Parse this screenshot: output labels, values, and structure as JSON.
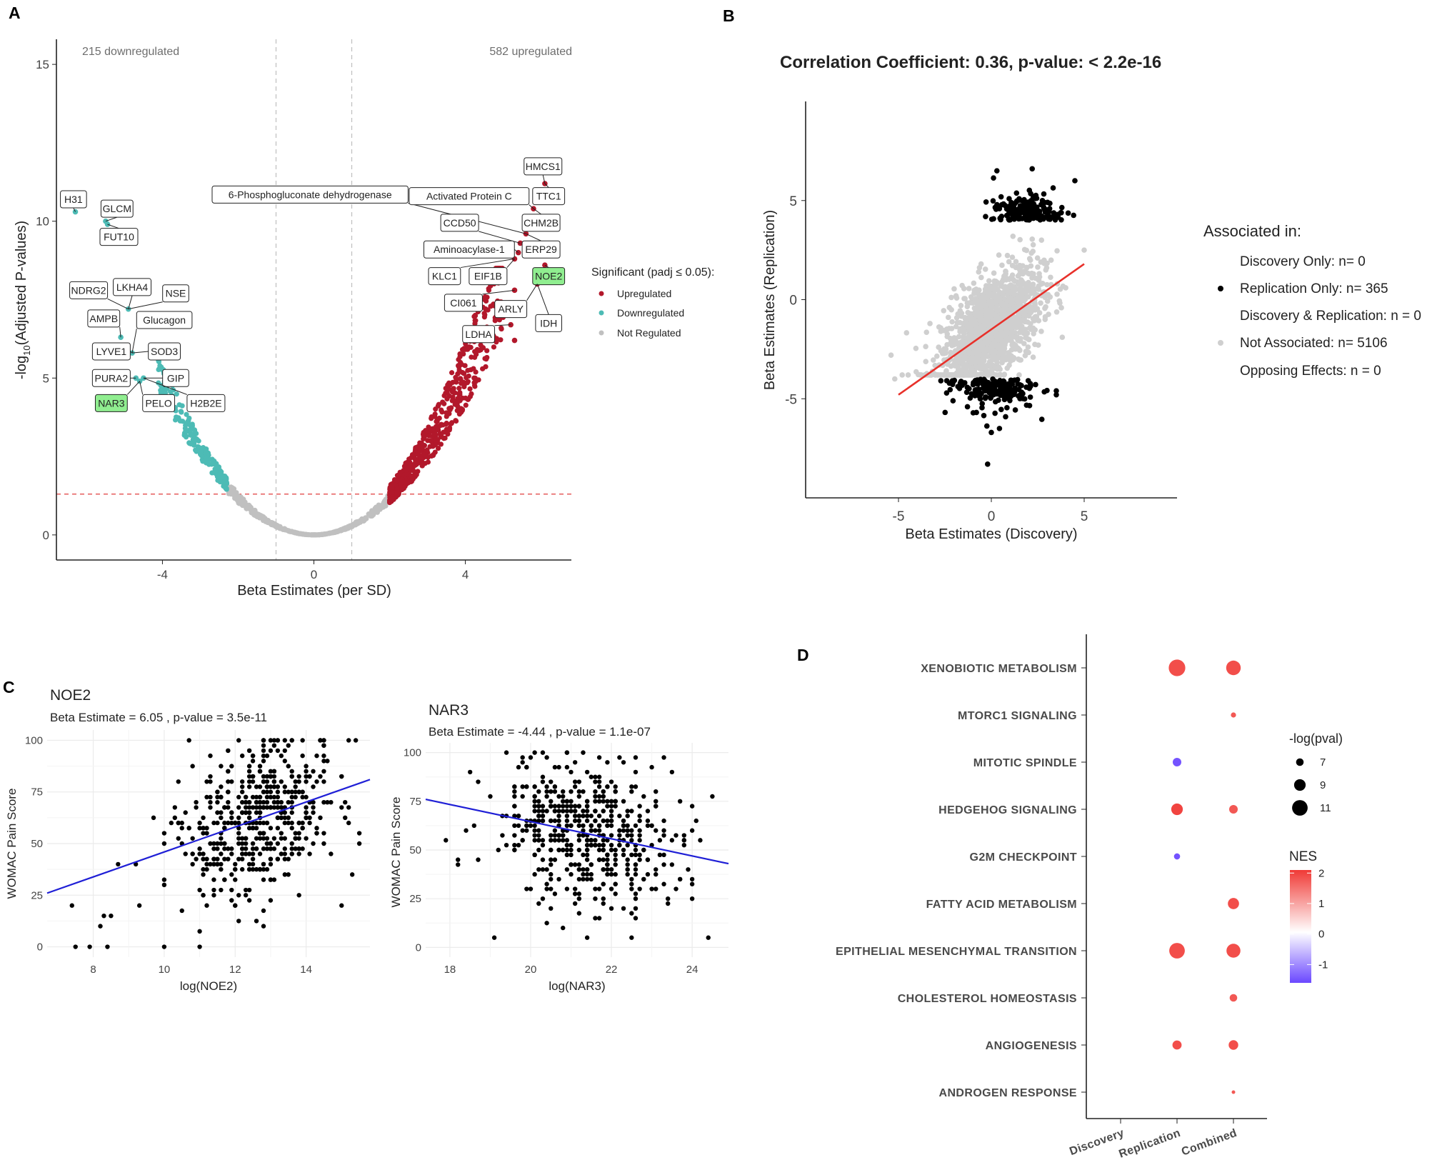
{
  "figure": {
    "panel_labels": [
      "A",
      "B",
      "C",
      "D"
    ]
  },
  "chart_data": [
    {
      "id": "A",
      "type": "scatter",
      "subtype": "volcano",
      "xlabel": "Beta Estimates (per SD)",
      "ylabel_main": "-log",
      "ylabel_sub": "10",
      "ylabel_rest": "(Adjusted P-values)",
      "xlim": [
        -6.8,
        6.8
      ],
      "ylim": [
        -0.8,
        15.8
      ],
      "xticks": [
        -4,
        0,
        4
      ],
      "yticks": [
        0,
        5,
        10,
        15
      ],
      "xtick_labels": [
        "-4",
        "0",
        "4"
      ],
      "ytick_labels": [
        "0",
        "5",
        "10",
        "15"
      ],
      "corner_labels": {
        "left": "215 downregulated",
        "right": "582 upregulated"
      },
      "vlines": [
        -1,
        1
      ],
      "hline": 1.3,
      "legend": {
        "title": "Significant (padj ≤ 0.05):",
        "entries": [
          {
            "label": "Upregulated",
            "color": "#b2182b"
          },
          {
            "label": "Downregulated",
            "color": "#4dbbb5"
          },
          {
            "label": "Not Regulated",
            "color": "#c0c0c0"
          }
        ]
      },
      "series": [
        {
          "name": "Upregulated",
          "n": 582,
          "color": "#b2182b",
          "x_range": [
            2.0,
            5.8
          ]
        },
        {
          "name": "Downregulated",
          "n": 215,
          "color": "#4dbbb5",
          "x_range": [
            -6.2,
            -2.3
          ]
        },
        {
          "name": "Not Regulated",
          "color": "#c0c0c0",
          "x_range": [
            -2.3,
            2.0
          ]
        }
      ],
      "named_points": [
        {
          "x": -6.3,
          "y": 10.3,
          "color": "#4dbbb5"
        },
        {
          "x": -5.5,
          "y": 10.0,
          "color": "#4dbbb5"
        },
        {
          "x": -5.45,
          "y": 9.9,
          "color": "#4dbbb5"
        },
        {
          "x": -4.9,
          "y": 7.2,
          "color": "#4dbbb5"
        },
        {
          "x": -5.1,
          "y": 6.3,
          "color": "#4dbbb5"
        },
        {
          "x": -4.8,
          "y": 5.8,
          "color": "#4dbbb5"
        },
        {
          "x": -4.7,
          "y": 5.0,
          "color": "#4dbbb5"
        },
        {
          "x": -4.5,
          "y": 5.0,
          "color": "#4dbbb5"
        },
        {
          "x": -4.6,
          "y": 4.9,
          "color": "#4dbbb5"
        },
        {
          "x": 6.1,
          "y": 11.2,
          "color": "#b2182b"
        },
        {
          "x": 5.8,
          "y": 10.4,
          "color": "#b2182b"
        },
        {
          "x": 5.6,
          "y": 9.6,
          "color": "#b2182b"
        },
        {
          "x": 5.45,
          "y": 9.3,
          "color": "#b2182b"
        },
        {
          "x": 5.4,
          "y": 9.0,
          "color": "#b2182b"
        },
        {
          "x": 5.3,
          "y": 8.8,
          "color": "#b2182b"
        },
        {
          "x": 6.1,
          "y": 8.6,
          "color": "#b2182b"
        },
        {
          "x": 5.9,
          "y": 8.0,
          "color": "#b2182b"
        },
        {
          "x": 5.3,
          "y": 7.8,
          "color": "#b2182b"
        },
        {
          "x": 5.2,
          "y": 6.7,
          "color": "#b2182b"
        },
        {
          "x": 5.3,
          "y": 6.2,
          "color": "#b2182b"
        }
      ],
      "gene_labels": [
        {
          "text": "H31",
          "x": -6.35,
          "y": 10.7,
          "px": -6.3,
          "py": 10.3
        },
        {
          "text": "GLCM",
          "x": -5.2,
          "y": 10.4,
          "px": -5.5,
          "py": 10.0
        },
        {
          "text": "FUT10",
          "x": -5.15,
          "y": 9.5,
          "px": -5.45,
          "py": 9.9
        },
        {
          "text": "NDRG2",
          "x": -5.95,
          "y": 7.8,
          "px": -4.9,
          "py": 7.2
        },
        {
          "text": "LKHA4",
          "x": -4.8,
          "y": 7.9,
          "px": -4.9,
          "py": 7.2
        },
        {
          "text": "NSE",
          "x": -3.65,
          "y": 7.7,
          "px": -4.9,
          "py": 7.2
        },
        {
          "text": "AMPB",
          "x": -5.55,
          "y": 6.9,
          "px": -5.1,
          "py": 6.3
        },
        {
          "text": "Glucagon",
          "x": -3.95,
          "y": 6.85,
          "px": -4.8,
          "py": 5.8
        },
        {
          "text": "LYVE1",
          "x": -5.35,
          "y": 5.85,
          "px": -4.8,
          "py": 5.8
        },
        {
          "text": "SOD3",
          "x": -3.95,
          "y": 5.85,
          "px": -4.8,
          "py": 5.8
        },
        {
          "text": "PURA2",
          "x": -5.35,
          "y": 5.0,
          "px": -4.7,
          "py": 5.0
        },
        {
          "text": "GIP",
          "x": -3.65,
          "y": 5.0,
          "px": -4.5,
          "py": 5.0
        },
        {
          "text": "NAR3",
          "x": -5.35,
          "y": 4.2,
          "px": -4.6,
          "py": 4.9,
          "highlight": true
        },
        {
          "text": "PELO",
          "x": -4.1,
          "y": 4.2,
          "px": -4.6,
          "py": 4.9
        },
        {
          "text": "H2B2E",
          "x": -2.85,
          "y": 4.2,
          "px": -4.5,
          "py": 5.0
        },
        {
          "text": "HMCS1",
          "x": 6.05,
          "y": 11.75,
          "px": 6.1,
          "py": 11.2
        },
        {
          "text": "6-Phosphogluconate dehydrogenase",
          "x": -0.1,
          "y": 10.85,
          "px": 5.6,
          "py": 9.6
        },
        {
          "text": "Activated Protein C",
          "x": 4.1,
          "y": 10.8,
          "px": 5.8,
          "py": 10.4
        },
        {
          "text": "TTC1",
          "x": 6.2,
          "y": 10.8,
          "px": 6.1,
          "py": 11.2
        },
        {
          "text": "CCD50",
          "x": 3.85,
          "y": 9.95,
          "px": 5.45,
          "py": 9.3
        },
        {
          "text": "CHM2B",
          "x": 6.0,
          "y": 9.95,
          "px": 5.8,
          "py": 10.4
        },
        {
          "text": "Aminoacylase-1",
          "x": 4.1,
          "y": 9.1,
          "px": 5.4,
          "py": 9.0
        },
        {
          "text": "ERP29",
          "x": 6.0,
          "y": 9.1,
          "px": 5.6,
          "py": 9.6
        },
        {
          "text": "KLC1",
          "x": 3.45,
          "y": 8.25,
          "px": 5.3,
          "py": 8.8
        },
        {
          "text": "EIF1B",
          "x": 4.6,
          "y": 8.25,
          "px": 5.3,
          "py": 8.8
        },
        {
          "text": "NOE2",
          "x": 6.2,
          "y": 8.25,
          "px": 6.1,
          "py": 8.6,
          "highlight": true
        },
        {
          "text": "CI061",
          "x": 3.95,
          "y": 7.4,
          "px": 5.3,
          "py": 7.8
        },
        {
          "text": "ARLY",
          "x": 5.2,
          "y": 7.2,
          "px": 5.9,
          "py": 8.0
        },
        {
          "text": "IDH",
          "x": 6.2,
          "y": 6.75,
          "px": 5.9,
          "py": 8.0
        },
        {
          "text": "LDHA",
          "x": 4.35,
          "y": 6.4,
          "px": 5.2,
          "py": 6.7
        }
      ]
    },
    {
      "id": "B",
      "type": "scatter",
      "title": "Correlation Coefficient: 0.36, p-value: < 2.2e-16",
      "xlabel": "Beta Estimates (Discovery)",
      "ylabel": "Beta Estimates (Replication)",
      "xlim": [
        -10,
        10
      ],
      "ylim": [
        -10,
        10
      ],
      "xticks": [
        -5,
        0,
        5
      ],
      "yticks": [
        -5,
        0,
        5
      ],
      "xtick_labels": [
        "-5",
        "0",
        "5"
      ],
      "ytick_labels": [
        "-5",
        "0",
        "5"
      ],
      "regression": {
        "x": [
          -5,
          5
        ],
        "y": [
          -4.8,
          1.8
        ],
        "color": "#e8302a"
      },
      "legend": {
        "title": "Associated in:",
        "entries": [
          {
            "label": "Discovery Only: n= 0",
            "color": null
          },
          {
            "label": "Replication Only: n= 365",
            "color": "#000000"
          },
          {
            "label": "Discovery & Replication: n = 0",
            "color": null
          },
          {
            "label": "Not Associated: n= 5106",
            "color": "#cfcfcf"
          },
          {
            "label": "Opposing Effects: n = 0",
            "color": null
          }
        ]
      },
      "series": [
        {
          "name": "Not Associated",
          "n": 5106,
          "color": "#cfcfcf"
        },
        {
          "name": "Replication Only",
          "n": 365,
          "color": "#000000"
        }
      ],
      "extremes": [
        {
          "x": 0.3,
          "y": 6.5
        },
        {
          "x": 2.2,
          "y": 6.6
        },
        {
          "x": 4.5,
          "y": 6.0
        },
        {
          "x": -0.2,
          "y": -8.3
        },
        {
          "x": 0,
          "y": -6.7
        },
        {
          "x": -5.2,
          "y": -4.0
        },
        {
          "x": 3.5,
          "y": -4.6
        },
        {
          "x": -5.4,
          "y": -2.8
        },
        {
          "x": 5.0,
          "y": 2.5
        }
      ]
    },
    {
      "id": "C1",
      "type": "scatter",
      "title": "NOE2",
      "subtitle": "Beta Estimate = 6.05 , p-value = 3.5e-11",
      "xlabel": "log(NOE2)",
      "ylabel": "WOMAC Pain Score",
      "xlim": [
        6.7,
        15.8
      ],
      "ylim": [
        -5,
        105
      ],
      "xticks": [
        8,
        10,
        12,
        14
      ],
      "yticks": [
        0,
        25,
        50,
        75,
        100
      ],
      "xtick_labels": [
        "8",
        "10",
        "12",
        "14"
      ],
      "ytick_labels": [
        "0",
        "25",
        "50",
        "75",
        "100"
      ],
      "regression": {
        "x": [
          6.7,
          15.8
        ],
        "y": [
          26,
          81
        ],
        "color": "#1f1fd6"
      },
      "x_center": 12.7,
      "x_spread": 1.1,
      "n_points": 520,
      "outliers": [
        {
          "x": 7.4,
          "y": 20
        },
        {
          "x": 7.5,
          "y": 0
        },
        {
          "x": 7.9,
          "y": 0
        },
        {
          "x": 8.2,
          "y": 10
        },
        {
          "x": 8.3,
          "y": 15
        },
        {
          "x": 8.5,
          "y": 15
        },
        {
          "x": 8.4,
          "y": 0
        },
        {
          "x": 8.7,
          "y": 40
        },
        {
          "x": 9.2,
          "y": 40
        },
        {
          "x": 9.3,
          "y": 20
        },
        {
          "x": 10.0,
          "y": 50
        },
        {
          "x": 10.0,
          "y": 0
        },
        {
          "x": 10.2,
          "y": 60
        },
        {
          "x": 10.4,
          "y": 60
        },
        {
          "x": 15.3,
          "y": 35
        },
        {
          "x": 15.5,
          "y": 50
        },
        {
          "x": 15.0,
          "y": 20
        },
        {
          "x": 14.5,
          "y": 100
        }
      ]
    },
    {
      "id": "C2",
      "type": "scatter",
      "title": "NAR3",
      "subtitle": "Beta Estimate = -4.44 , p-value = 1.1e-07",
      "xlabel": "log(NAR3)",
      "ylabel": "WOMAC Pain Score",
      "xlim": [
        17.4,
        24.9
      ],
      "ylim": [
        -5,
        105
      ],
      "xticks": [
        18,
        20,
        22,
        24
      ],
      "yticks": [
        0,
        25,
        50,
        75,
        100
      ],
      "xtick_labels": [
        "18",
        "20",
        "22",
        "24"
      ],
      "ytick_labels": [
        "0",
        "25",
        "50",
        "75",
        "100"
      ],
      "regression": {
        "x": [
          17.4,
          24.9
        ],
        "y": [
          76,
          43
        ],
        "color": "#1f1fd6"
      },
      "x_center": 21.4,
      "x_spread": 1.05,
      "n_points": 520,
      "outliers": [
        {
          "x": 17.9,
          "y": 55
        },
        {
          "x": 18.2,
          "y": 45
        },
        {
          "x": 18.4,
          "y": 60
        },
        {
          "x": 18.5,
          "y": 90
        },
        {
          "x": 18.7,
          "y": 45
        },
        {
          "x": 19.1,
          "y": 5
        },
        {
          "x": 24.4,
          "y": 5
        },
        {
          "x": 24.0,
          "y": 25
        },
        {
          "x": 24.2,
          "y": 55
        },
        {
          "x": 23.7,
          "y": 75
        }
      ]
    },
    {
      "id": "D",
      "type": "scatter",
      "subtype": "dotplot",
      "categories_x": [
        "Discovery",
        "Replication",
        "Combined"
      ],
      "categories_y": [
        "XENOBIOTIC METABOLISM",
        "MTORC1 SIGNALING",
        "MITOTIC SPINDLE",
        "HEDGEHOG SIGNALING",
        "G2M CHECKPOINT",
        "FATTY ACID METABOLISM",
        "EPITHELIAL MESENCHYMAL TRANSITION",
        "CHOLESTEROL HOMEOSTASIS",
        "ANGIOGENESIS",
        "ANDROGEN RESPONSE"
      ],
      "dots": [
        {
          "pathway": "XENOBIOTIC METABOLISM",
          "col": "Replication",
          "neglogp": 11.5,
          "nes": 1.8
        },
        {
          "pathway": "XENOBIOTIC METABOLISM",
          "col": "Combined",
          "neglogp": 10.5,
          "nes": 1.8
        },
        {
          "pathway": "MTORC1 SIGNALING",
          "col": "Combined",
          "neglogp": 5.8,
          "nes": 1.7
        },
        {
          "pathway": "MITOTIC SPINDLE",
          "col": "Replication",
          "neglogp": 7.5,
          "nes": -1.5
        },
        {
          "pathway": "HEDGEHOG SIGNALING",
          "col": "Replication",
          "neglogp": 9.0,
          "nes": 1.9
        },
        {
          "pathway": "HEDGEHOG SIGNALING",
          "col": "Combined",
          "neglogp": 7.5,
          "nes": 1.7
        },
        {
          "pathway": "G2M CHECKPOINT",
          "col": "Replication",
          "neglogp": 6.3,
          "nes": -1.5
        },
        {
          "pathway": "FATTY ACID METABOLISM",
          "col": "Combined",
          "neglogp": 8.8,
          "nes": 1.8
        },
        {
          "pathway": "EPITHELIAL MESENCHYMAL TRANSITION",
          "col": "Replication",
          "neglogp": 11.0,
          "nes": 1.8
        },
        {
          "pathway": "EPITHELIAL MESENCHYMAL TRANSITION",
          "col": "Combined",
          "neglogp": 10.2,
          "nes": 1.8
        },
        {
          "pathway": "CHOLESTEROL HOMEOSTASIS",
          "col": "Combined",
          "neglogp": 7.0,
          "nes": 1.7
        },
        {
          "pathway": "ANGIOGENESIS",
          "col": "Replication",
          "neglogp": 7.8,
          "nes": 1.8
        },
        {
          "pathway": "ANGIOGENESIS",
          "col": "Combined",
          "neglogp": 8.0,
          "nes": 1.8
        },
        {
          "pathway": "ANDROGEN RESPONSE",
          "col": "Combined",
          "neglogp": 5.0,
          "nes": 1.7
        }
      ],
      "legend_size": {
        "title": "-log(pval)",
        "entries": [
          {
            "label": "7",
            "value": 7
          },
          {
            "label": "9",
            "value": 9
          },
          {
            "label": "11",
            "value": 11
          }
        ]
      },
      "legend_color": {
        "title": "NES",
        "range": [
          -1.6,
          2.1
        ],
        "ticks": [
          {
            "label": "2",
            "value": 2
          },
          {
            "label": "1",
            "value": 1
          },
          {
            "label": "0",
            "value": 0
          },
          {
            "label": "-1",
            "value": -1
          }
        ],
        "colors": {
          "low": "#6b48ff",
          "mid": "#ffffff",
          "high": "#f03a36"
        }
      }
    }
  ]
}
